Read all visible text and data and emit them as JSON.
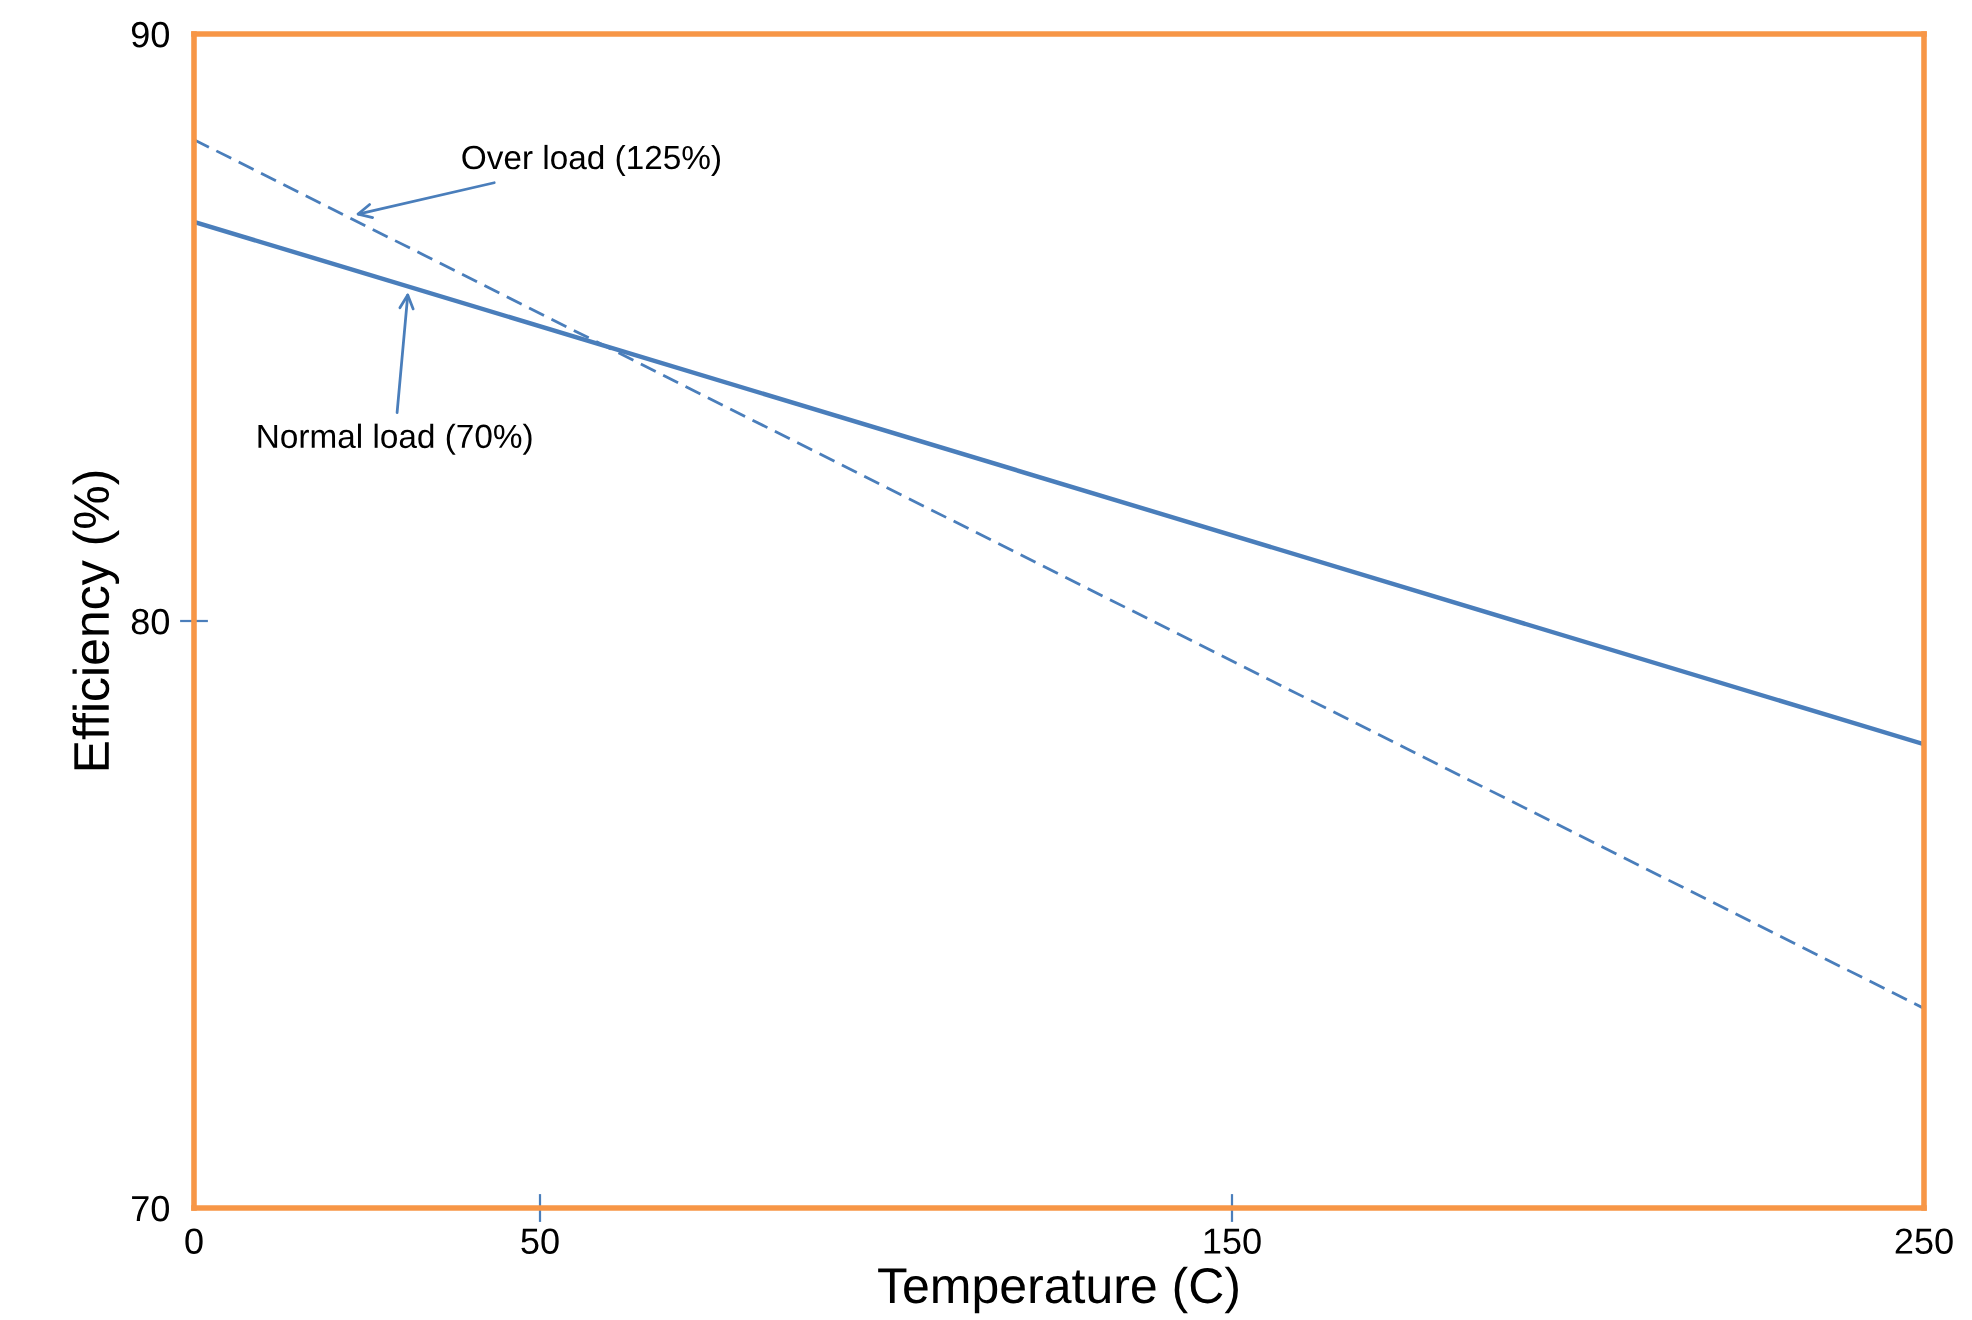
{
  "chart_data": {
    "type": "line",
    "xlabel": "Temperature (C)",
    "ylabel": "Efficiency (%)",
    "x": [
      0,
      250
    ],
    "series": [
      {
        "color": "#4a7ebb",
        "values": [
          86.8,
          77.9
        ],
        "line_style": "solid"
      },
      {
        "color": "#4a7ebb",
        "values": [
          88.2,
          73.4
        ],
        "line_style": "dashed"
      }
    ],
    "annotations": [
      {
        "text": "Over load (125%)",
        "x": 22.5,
        "y": 86.9
      },
      {
        "text": "Normal load (70%)",
        "x": 31,
        "y": 85.7
      }
    ],
    "xlim": [
      0,
      250
    ],
    "xticks": [
      0,
      50,
      150,
      250
    ],
    "ylim": [
      70,
      90
    ],
    "yticks": [
      70,
      80,
      90
    ],
    "grid": false,
    "legend": false,
    "marker": "none"
  }
}
